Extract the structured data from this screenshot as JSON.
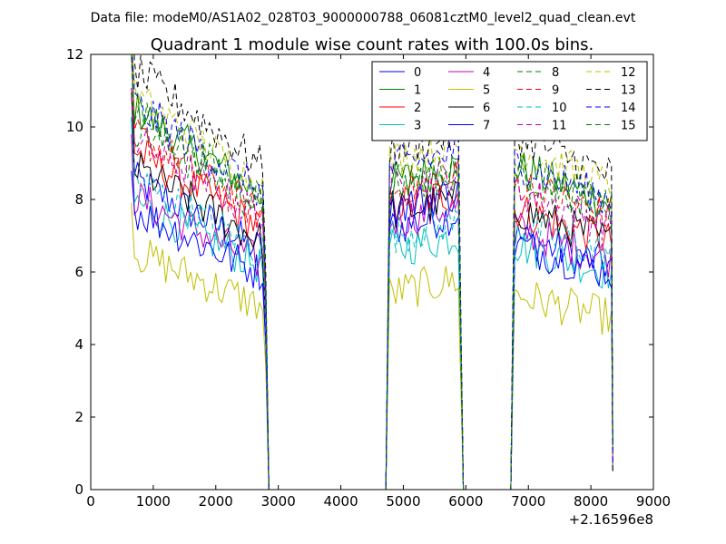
{
  "chart_data": {
    "type": "line",
    "suptitle": "Data file: modeM0/AS1A02_028T03_9000000788_06081cztM0_level2_quad_clean.evt",
    "title": "Quadrant 1 module wise count rates with 100.0s bins.",
    "xlabel": "",
    "ylabel": "",
    "x_offset_label": "+2.16596e8",
    "xlim": [
      0,
      9000
    ],
    "ylim": [
      0,
      12
    ],
    "xticks": [
      0,
      1000,
      2000,
      3000,
      4000,
      5000,
      6000,
      7000,
      8000,
      9000
    ],
    "yticks": [
      0,
      2,
      4,
      6,
      8,
      10,
      12
    ],
    "grid": false,
    "legend": {
      "location": "top-right",
      "columns": 4
    },
    "segments": [
      {
        "x_start": 650,
        "x_end": 2750
      },
      {
        "x_start": 4780,
        "x_end": 5880
      },
      {
        "x_start": 6780,
        "x_end": 8330
      }
    ],
    "zero_gaps": [
      [
        2850,
        4720
      ],
      [
        5960,
        6720
      ]
    ],
    "series": [
      {
        "name": "0",
        "color": "#0000ff",
        "dash": "solid",
        "levels": [
          7.3,
          7.4,
          6.5
        ]
      },
      {
        "name": "1",
        "color": "#008000",
        "dash": "solid",
        "levels": [
          9.0,
          8.7,
          8.3
        ]
      },
      {
        "name": "2",
        "color": "#ff0000",
        "dash": "solid",
        "levels": [
          8.0,
          8.0,
          7.2
        ]
      },
      {
        "name": "3",
        "color": "#00bfbf",
        "dash": "solid",
        "levels": [
          6.8,
          6.8,
          6.3
        ]
      },
      {
        "name": "4",
        "color": "#bf00bf",
        "dash": "solid",
        "levels": [
          6.9,
          7.6,
          6.7
        ]
      },
      {
        "name": "5",
        "color": "#bfbf00",
        "dash": "solid",
        "levels": [
          5.6,
          5.6,
          5.0
        ]
      },
      {
        "name": "6",
        "color": "#000000",
        "dash": "solid",
        "levels": [
          7.6,
          7.8,
          7.2
        ]
      },
      {
        "name": "7",
        "color": "#0000ff",
        "dash": "solid",
        "levels": [
          6.6,
          8.0,
          6.3
        ]
      },
      {
        "name": "8",
        "color": "#008000",
        "dash": "dashed",
        "levels": [
          8.6,
          8.6,
          8.1
        ]
      },
      {
        "name": "9",
        "color": "#ff0000",
        "dash": "dashed",
        "levels": [
          8.4,
          8.4,
          7.9
        ]
      },
      {
        "name": "10",
        "color": "#00bfbf",
        "dash": "dashed",
        "levels": [
          7.3,
          7.2,
          6.8
        ]
      },
      {
        "name": "11",
        "color": "#bf00bf",
        "dash": "dashed",
        "levels": [
          8.3,
          8.5,
          7.7
        ]
      },
      {
        "name": "12",
        "color": "#bfbf00",
        "dash": "dashed",
        "levels": [
          9.3,
          9.3,
          8.8
        ]
      },
      {
        "name": "13",
        "color": "#000000",
        "dash": "dashed",
        "levels": [
          9.9,
          9.6,
          9.1
        ]
      },
      {
        "name": "14",
        "color": "#0000ff",
        "dash": "dashed",
        "levels": [
          9.1,
          9.1,
          8.4
        ]
      },
      {
        "name": "15",
        "color": "#008000",
        "dash": "dashed",
        "levels": [
          8.9,
          8.6,
          8.2
        ]
      }
    ]
  }
}
